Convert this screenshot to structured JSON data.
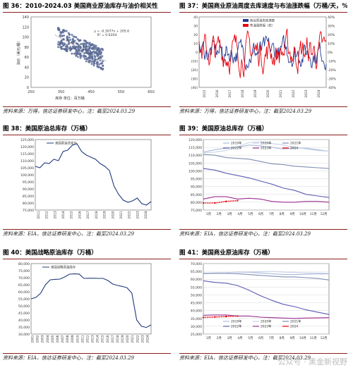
{
  "colors": {
    "navy": "#1f3a7a",
    "red": "#e8000b",
    "blue": "#1f3a93",
    "grey": "#8a8a8a",
    "title_rule": "#8a1e1e"
  },
  "panels": {
    "p36": {
      "title": "图 36：2010-2024.03 美国商业原油库存与油价相关性",
      "source": "资料来源：万得，信达证券研发中心，注：截至2024.03.29"
    },
    "p37": {
      "title": "图 37：美国商业原油周度去库速度与布油涨跌幅（万桶/天，%）",
      "source": "资料来源：万得，信达证券研发中心，注：截至2024.03.29"
    },
    "p38": {
      "title": "图 38：美国原油总库存（万桶）",
      "source": "资料来源：EIA，信达证券研发中心，注：截至2024.03.29"
    },
    "p39": {
      "title": "图 39：美国原油总库存（万桶）",
      "source": "资料来源：EIA，信达证券研发中心，注：截至2024.03.29"
    },
    "p40": {
      "title": "图 40：美国战略原油库存（万桶）",
      "source": "资料来源：EIA，信达证券研发中心，注：截至2024.03.29"
    },
    "p41": {
      "title": "图 41：美国商业原油库存（万桶）",
      "source": "资料来源：EIA，信达证券研发中心，注：截至2024.03.29"
    }
  },
  "watermark": "公众号 · 黑金新视野",
  "chart_data": [
    {
      "id": "c36",
      "type": "scatter",
      "xlabel": "库存 单位：百万桶",
      "ylabel": "油价（美元/桶）",
      "xlim": [
        250,
        650
      ],
      "ylim": [
        0,
        140
      ],
      "xticks": [
        "250",
        "350",
        "450",
        "550",
        "650"
      ],
      "yticks": [
        "0",
        "20",
        "40",
        "60",
        "80",
        "100",
        "120",
        "140"
      ],
      "equation": "y = -0.3077x + 205.6",
      "r2": "R² = 0.6204",
      "trend": {
        "slope": -0.3077,
        "intercept": 205.6
      }
    },
    {
      "id": "c37",
      "type": "line",
      "ylim": [
        -40,
        40
      ],
      "ylim2": [
        -40,
        40
      ],
      "yticks": [
        "40",
        "30",
        "20",
        "10",
        "0",
        "(10)",
        "(20)",
        "(30)",
        "(40)"
      ],
      "y2ticks": [
        "40%",
        "30%",
        "20%",
        "10%",
        "0%",
        "-10%",
        "-20%",
        "-30%",
        "-40%"
      ],
      "xticks": [
        "2015",
        "2016",
        "2017",
        "2018",
        "2019",
        "2020",
        "2021",
        "2022",
        "2023",
        "2024"
      ],
      "series": [
        {
          "name": "商业原油去库速度",
          "color": "#1f3a93"
        },
        {
          "name": "布油涨跌幅（右）",
          "color": "#e8000b"
        }
      ]
    },
    {
      "id": "c38",
      "type": "line",
      "ylim": [
        75000,
        125000
      ],
      "yticks": [
        "125,000",
        "120,000",
        "115,000",
        "110,000",
        "105,000",
        "100,000",
        "95,000",
        "90,000",
        "85,000",
        "80,000",
        "75,000"
      ],
      "xticks": [
        "2011",
        "2012",
        "2013",
        "2014",
        "2015",
        "2016",
        "2017",
        "2018",
        "2019",
        "2020",
        "2021",
        "2022",
        "2023",
        "2024"
      ],
      "series": [
        {
          "name": "美国原油总库存",
          "color": "#1f3a7a",
          "values": [
            106000,
            105000,
            108500,
            108000,
            111000,
            110000,
            116500,
            117500,
            121000,
            122000,
            116500,
            114000,
            112500,
            111000,
            108000,
            106000,
            103000,
            92000,
            86000,
            82000,
            80500,
            81500,
            83500,
            79500,
            78500,
            81000
          ]
        }
      ]
    },
    {
      "id": "c39",
      "type": "line",
      "ylim": [
        75000,
        120000
      ],
      "yticks": [
        "120,000",
        "115,000",
        "110,000",
        "105,000",
        "100,000",
        "95,000",
        "90,000",
        "85,000",
        "80,000",
        "75,000"
      ],
      "xticks": [
        "1月",
        "2月",
        "3月",
        "4月",
        "5月",
        "6月",
        "7月",
        "8月",
        "9月",
        "10月",
        "11月",
        "12月"
      ],
      "series": [
        {
          "name": "2019年",
          "color": "#a9b9d9",
          "values": [
            112000,
            113500,
            114500,
            115000,
            116500,
            116000,
            115000,
            114000,
            114500,
            114500,
            113500,
            112500
          ]
        },
        {
          "name": "2020年",
          "color": "#c9d3e9",
          "values": [
            111500,
            112000,
            113000,
            115500,
            118000,
            118500,
            117500,
            116500,
            115000,
            114000,
            113000,
            112500
          ]
        },
        {
          "name": "2021年",
          "color": "#7f8fb3",
          "values": [
            110500,
            110000,
            108500,
            108000,
            107500,
            106000,
            104500,
            104000,
            103000,
            102500,
            102000,
            101500
          ]
        },
        {
          "name": "2022年",
          "color": "#5b5bb3",
          "values": [
            101500,
            100500,
            98500,
            97000,
            95500,
            93500,
            91500,
            89000,
            87500,
            85000,
            84000,
            83000
          ]
        },
        {
          "name": "2023年",
          "color": "#9b2f8f",
          "values": [
            82000,
            83500,
            83500,
            82000,
            82500,
            82000,
            80500,
            80000,
            80000,
            80500,
            80500,
            80000
          ]
        },
        {
          "name": "2024",
          "color": "#e8000b",
          "values": [
            79500,
            79500,
            80500,
            81000
          ]
        }
      ]
    },
    {
      "id": "c40",
      "type": "line",
      "ylim": [
        30000,
        80000
      ],
      "yticks": [
        "80,000",
        "75,000",
        "70,000",
        "65,000",
        "60,000",
        "55,000",
        "50,000",
        "45,000",
        "40,000",
        "35,000",
        "30,000"
      ],
      "xticks": [
        "2001",
        "2002",
        "2003",
        "2004",
        "2005",
        "2006",
        "2007",
        "2008",
        "2009",
        "2010",
        "2011",
        "2012",
        "2013",
        "2014",
        "2015",
        "2016",
        "2017",
        "2018",
        "2019",
        "2020",
        "2021",
        "2022",
        "2023",
        "2024"
      ],
      "series": [
        {
          "name": "美国战略原油库存",
          "color": "#1f3a7a",
          "values": [
            55000,
            56000,
            59000,
            65000,
            68500,
            68800,
            69000,
            70500,
            72500,
            72700,
            72600,
            69500,
            69600,
            69600,
            69500,
            69500,
            68000,
            65500,
            64500,
            63800,
            62800,
            59000,
            40000,
            35500,
            34700,
            36500
          ]
        }
      ]
    },
    {
      "id": "c41",
      "type": "line",
      "ylim": [
        25000,
        70000
      ],
      "yticks": [
        "70,000",
        "65,000",
        "60,000",
        "55,000",
        "50,000",
        "45,000",
        "40,000",
        "35,000",
        "30,000",
        "25,000"
      ],
      "xticks": [
        "1月",
        "2月",
        "3月",
        "4月",
        "5月",
        "6月",
        "7月",
        "8月",
        "9月",
        "10月",
        "11月",
        "12月"
      ],
      "series": [
        {
          "name": "2019年",
          "color": "#a9b9d9",
          "values": [
            63500,
            64000,
            64200,
            64500,
            64400,
            64000,
            63500,
            63000,
            63000,
            63200,
            63400,
            63400
          ]
        },
        {
          "name": "2020年",
          "color": "#c9d3e9",
          "values": [
            63500,
            63800,
            64200,
            64500,
            64600,
            64800,
            65000,
            64500,
            64400,
            64000,
            64000,
            63800
          ]
        },
        {
          "name": "2021年",
          "color": "#7f8fb3",
          "values": [
            63800,
            63800,
            63700,
            63500,
            63000,
            62500,
            62000,
            61500,
            61500,
            61000,
            60500,
            59500
          ]
        },
        {
          "name": "2022年",
          "color": "#5b5bb3",
          "values": [
            59000,
            58000,
            57500,
            56000,
            53000,
            49500,
            46500,
            44000,
            42500,
            40500,
            39000,
            37500
          ]
        },
        {
          "name": "2023年",
          "color": "#9b2f8f",
          "values": [
            37000,
            37200,
            37200,
            36500,
            36500,
            35800,
            35500,
            35200,
            35000,
            35200,
            35300,
            35500
          ]
        },
        {
          "name": "2024",
          "color": "#e8000b",
          "values": [
            35600,
            35900,
            36200,
            36500
          ]
        }
      ]
    }
  ]
}
